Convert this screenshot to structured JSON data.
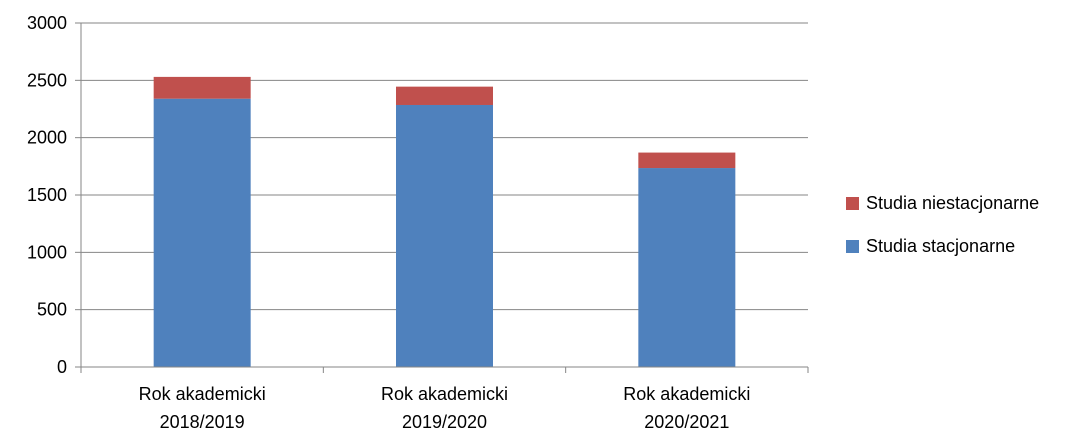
{
  "chart_data": {
    "type": "bar",
    "stacked": true,
    "categories": [
      [
        "Rok akademicki",
        "2018/2019"
      ],
      [
        "Rok akademicki",
        "2019/2020"
      ],
      [
        "Rok akademicki",
        "2020/2021"
      ]
    ],
    "series": [
      {
        "name": "Studia stacjonarne",
        "color": "#4F81BD",
        "values": [
          2340,
          2285,
          1735
        ]
      },
      {
        "name": "Studia niestacjonarne",
        "color": "#C0504D",
        "values": [
          190,
          160,
          135
        ]
      }
    ],
    "ylim": [
      0,
      3000
    ],
    "yticks": [
      0,
      500,
      1000,
      1500,
      2000,
      2500,
      3000
    ],
    "grid": true,
    "legend_position": "right",
    "title": "",
    "xlabel": "",
    "ylabel": ""
  }
}
